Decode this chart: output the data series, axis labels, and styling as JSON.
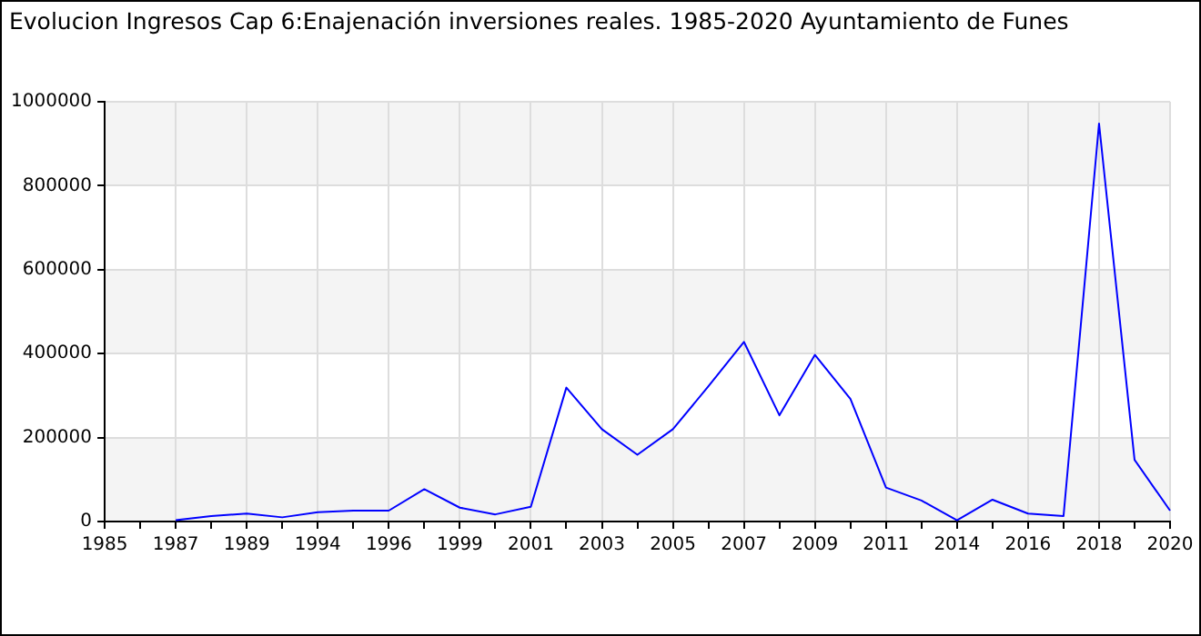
{
  "chart_data": {
    "type": "line",
    "title": "Evolucion Ingresos Cap 6:Enajenación inversiones reales. 1985-2020 Ayuntamiento de Funes",
    "categories": [
      "1985",
      null,
      "1987",
      null,
      "1989",
      null,
      "1994",
      null,
      "1996",
      null,
      "1999",
      null,
      "2001",
      null,
      "2003",
      null,
      "2005",
      null,
      "2007",
      null,
      "2009",
      null,
      "2011",
      null,
      "2014",
      null,
      "2016",
      null,
      "2018",
      null,
      "2020"
    ],
    "series": [
      {
        "color": "#0000ff",
        "values": [
          null,
          null,
          3000,
          13000,
          19000,
          10000,
          22000,
          26000,
          26000,
          77000,
          33000,
          17000,
          35000,
          319000,
          220000,
          159000,
          220000,
          322000,
          428000,
          253000,
          397000,
          292000,
          81000,
          50000,
          3000,
          52000,
          19000,
          13000,
          948000,
          147000,
          26000
        ]
      }
    ],
    "ylim": [
      0,
      1000000
    ],
    "yticks": [
      0,
      200000,
      400000,
      600000,
      800000,
      1000000
    ],
    "grid": true,
    "legend": false,
    "marker": "none",
    "line_style": "solid"
  }
}
